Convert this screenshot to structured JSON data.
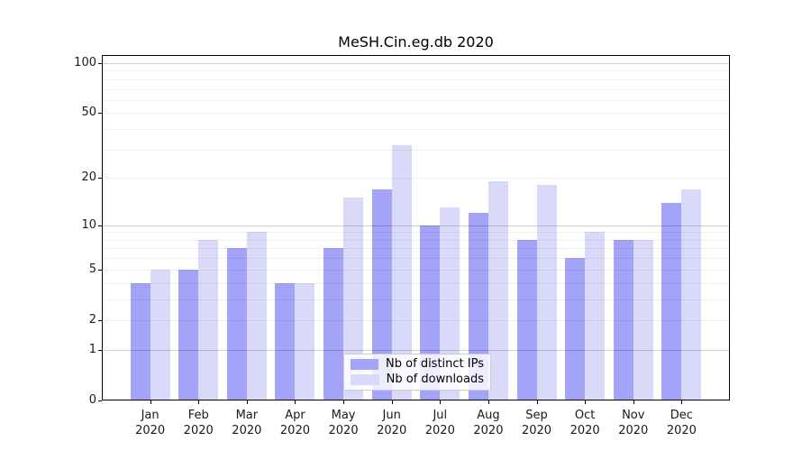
{
  "title": "MeSH.Cin.eg.db 2020",
  "chart_data": {
    "type": "bar",
    "title": "MeSH.Cin.eg.db 2020",
    "yscale": "log1p",
    "grid": true,
    "legend_position": "lower center",
    "categories": [
      "Jan 2020",
      "Feb 2020",
      "Mar 2020",
      "Apr 2020",
      "May 2020",
      "Jun 2020",
      "Jul 2020",
      "Aug 2020",
      "Sep 2020",
      "Oct 2020",
      "Nov 2020",
      "Dec 2020"
    ],
    "x_tick_month": [
      "Jan",
      "Feb",
      "Mar",
      "Apr",
      "May",
      "Jun",
      "Jul",
      "Aug",
      "Sep",
      "Oct",
      "Nov",
      "Dec"
    ],
    "x_tick_year": [
      "2020",
      "2020",
      "2020",
      "2020",
      "2020",
      "2020",
      "2020",
      "2020",
      "2020",
      "2020",
      "2020",
      "2020"
    ],
    "series": [
      {
        "name": "Nb of distinct IPs",
        "color": "#a3a3f7",
        "values": [
          4,
          5,
          7,
          4,
          7,
          17,
          10,
          12,
          8,
          6,
          8,
          14
        ]
      },
      {
        "name": "Nb of downloads",
        "color": "#d9d9fa",
        "values": [
          5,
          8,
          9,
          4,
          15,
          32,
          13,
          19,
          18,
          9,
          8,
          17
        ]
      }
    ],
    "y_tick_values": [
      0,
      1,
      2,
      5,
      10,
      20,
      50,
      100
    ],
    "y_major_gridlines": [
      1,
      10,
      100
    ],
    "y_minor_gridlines": [
      2,
      3,
      4,
      5,
      6,
      7,
      8,
      9,
      20,
      30,
      40,
      50,
      60,
      70,
      80,
      90
    ],
    "ylim": [
      0,
      112
    ]
  },
  "colors": {
    "bar_ips": "#a3a3f7",
    "bar_downloads": "#d9d9fa",
    "grid_major": "rgba(0,0,0,0.18)",
    "grid_minor": "rgba(0,0,0,0.06)",
    "axis": "#000000",
    "legend_border": "#cccccc"
  }
}
